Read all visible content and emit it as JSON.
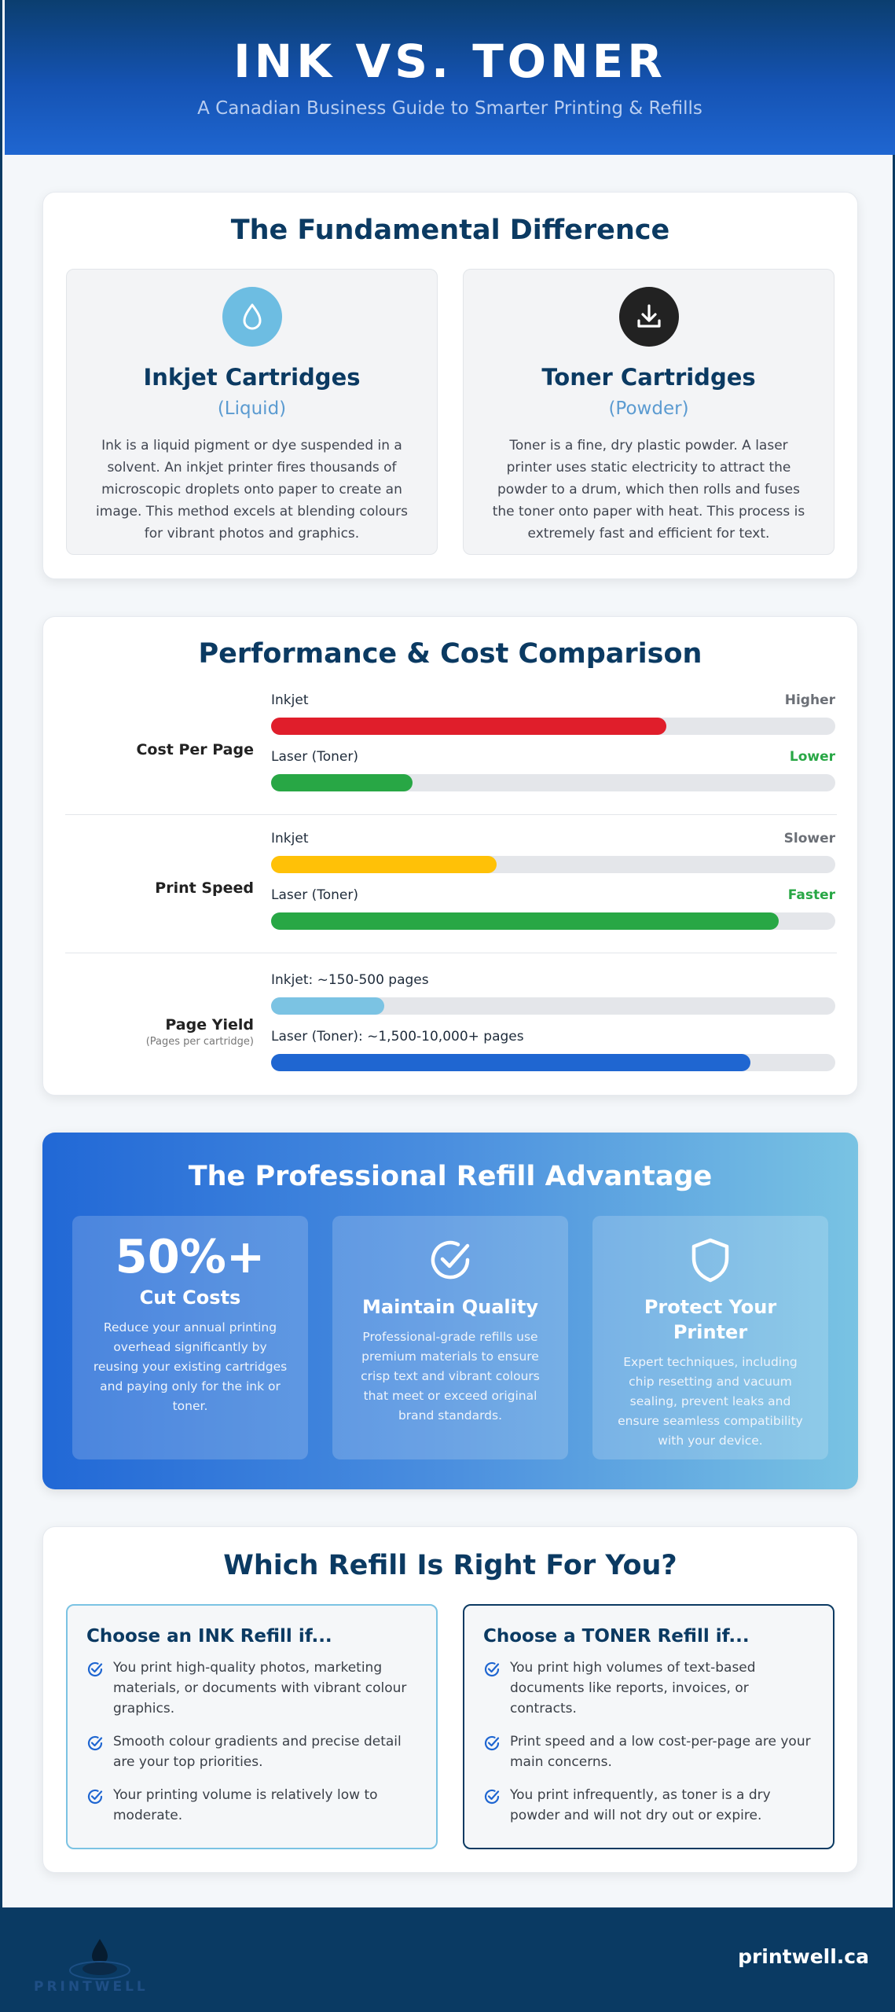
{
  "header": {
    "title": "INK VS. TONER",
    "subtitle": "A Canadian Business Guide to Smarter Printing & Refills"
  },
  "fundamental": {
    "title": "The Fundamental Difference",
    "inkjet": {
      "icon": "droplet-icon",
      "title": "Inkjet Cartridges",
      "kind": "(Liquid)",
      "description": "Ink is a liquid pigment or dye suspended in a solvent. An inkjet printer fires thousands of microscopic droplets onto paper to create an image. This method excels at blending colours for vibrant photos and graphics."
    },
    "toner": {
      "icon": "download-icon",
      "title": "Toner Cartridges",
      "kind": "(Powder)",
      "description": "Toner is a fine, dry plastic powder. A laser printer uses static electricity to attract the powder to a drum, which then rolls and fuses the toner onto paper with heat. This process is extremely fast and efficient for text."
    }
  },
  "performance": {
    "title": "Performance & Cost Comparison",
    "metrics": [
      {
        "label": "Cost Per Page",
        "note": "",
        "bars": [
          {
            "name": "Inkjet",
            "rating": "Higher",
            "level": 0.7,
            "color": "#e01e2b",
            "rating_color": "#6b6f76"
          },
          {
            "name": "Laser (Toner)",
            "rating": "Lower",
            "level": 0.25,
            "color": "#28a745",
            "rating_color": "#28a745"
          }
        ]
      },
      {
        "label": "Print Speed",
        "note": "",
        "bars": [
          {
            "name": "Inkjet",
            "rating": "Slower",
            "level": 0.4,
            "color": "#ffc107",
            "rating_color": "#6b6f76"
          },
          {
            "name": "Laser (Toner)",
            "rating": "Faster",
            "level": 0.9,
            "color": "#28a745",
            "rating_color": "#28a745"
          }
        ]
      },
      {
        "label": "Page Yield",
        "note": "(Pages per cartridge)",
        "bars": [
          {
            "name": "Inkjet: ~150-500 pages",
            "rating": "",
            "level": 0.2,
            "color": "#7bc3e3",
            "rating_color": "#6b6f76"
          },
          {
            "name": "Laser (Toner): ~1,500-10,000+ pages",
            "rating": "",
            "level": 0.85,
            "color": "#1f66d1",
            "rating_color": "#6b6f76"
          }
        ]
      }
    ]
  },
  "refill": {
    "title": "The Professional Refill Advantage",
    "items": [
      {
        "big": "50%+",
        "icon": "",
        "title": "Cut Costs",
        "text": "Reduce your annual printing overhead significantly by reusing your existing cartridges and paying only for the ink or toner."
      },
      {
        "big": "",
        "icon": "check-circle-icon",
        "title": "Maintain Quality",
        "text": "Professional-grade refills use premium materials to ensure crisp text and vibrant colours that meet or exceed original brand standards."
      },
      {
        "big": "",
        "icon": "shield-icon",
        "title": "Protect Your Printer",
        "text": "Expert techniques, including chip resetting and vacuum sealing, prevent leaks and ensure seamless compatibility with your device."
      }
    ]
  },
  "which": {
    "title": "Which Refill Is Right For You?",
    "ink": {
      "title": "Choose an INK Refill if...",
      "items": [
        "You print high-quality photos, marketing materials, or documents with vibrant colour graphics.",
        "Smooth colour gradients and precise detail are your top priorities.",
        "Your printing volume is relatively low to moderate."
      ]
    },
    "toner": {
      "title": "Choose a TONER Refill if...",
      "items": [
        "You print high volumes of text-based documents like reports, invoices, or contracts.",
        "Print speed and a low cost-per-page are your main concerns.",
        "You print infrequently, as toner is a dry powder and will not dry out or expire."
      ]
    }
  },
  "footer": {
    "logo_text": "PRINTWELL",
    "url": "printwell.ca"
  },
  "colors": {
    "navy": "#0b3a62",
    "accent_blue": "#1f66d1",
    "light_blue": "#5b9bd1"
  }
}
